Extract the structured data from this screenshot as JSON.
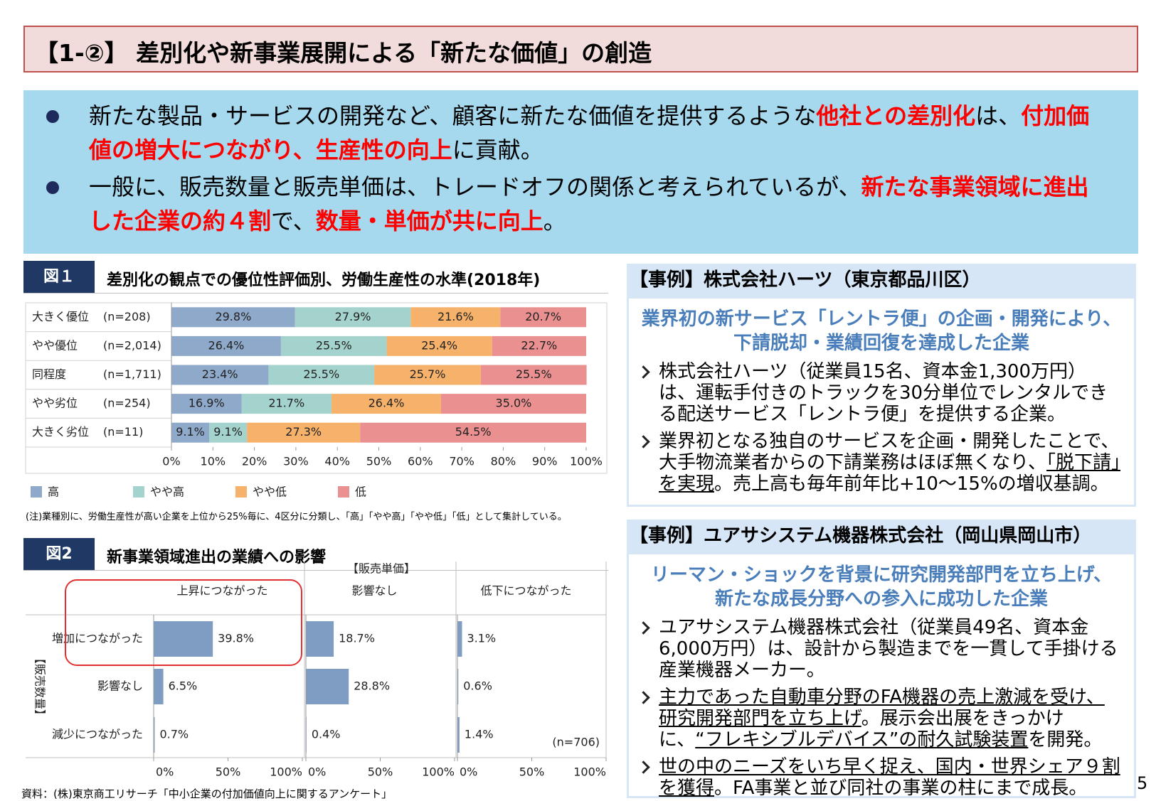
{
  "header": {
    "title": "【1-②】 差別化や新事業展開による「新たな価値」の創造"
  },
  "summary": {
    "bullets": [
      {
        "segments": [
          {
            "text": "新たな製品・サービスの開発など、顧客に新たな価値を提供するような",
            "emphasis": false
          },
          {
            "text": "他社との差別化",
            "emphasis": true
          },
          {
            "text": "は、",
            "emphasis": false
          },
          {
            "text": "付加価値の増大につながり、生産性の向上",
            "emphasis": true
          },
          {
            "text": "に貢献。",
            "emphasis": false
          }
        ]
      },
      {
        "segments": [
          {
            "text": "一般に、販売数量と販売単価は、トレードオフの関係と考えられているが、",
            "emphasis": false
          },
          {
            "text": "新たな事業領域に進出した企業の約４割",
            "emphasis": true
          },
          {
            "text": "で、",
            "emphasis": false
          },
          {
            "text": "数量・単価が共に向上",
            "emphasis": true
          },
          {
            "text": "。",
            "emphasis": false
          }
        ]
      }
    ]
  },
  "chart_data": [
    {
      "type": "stacked_bar",
      "label": "図１",
      "title": "差別化の観点での優位性評価別、労働生産性の水準(2018年)",
      "categories": [
        "大きく優位",
        "やや優位",
        "同程度",
        "やや劣位",
        "大きく劣位"
      ],
      "sample_sizes": [
        "(n=208)",
        "(n=2,014)",
        "(n=1,711)",
        "(n=254)",
        "(n=11)"
      ],
      "series": [
        {
          "name": "高",
          "color": "#8ea9c9",
          "values": [
            29.8,
            26.4,
            23.4,
            16.9,
            9.1
          ],
          "value_labels": [
            "29.8%",
            "26.4%",
            "23.4%",
            "16.9%",
            "9.1%"
          ]
        },
        {
          "name": "やや高",
          "color": "#a3d3cc",
          "values": [
            27.9,
            25.5,
            25.5,
            21.7,
            9.1
          ],
          "value_labels": [
            "27.9%",
            "25.5%",
            "25.5%",
            "21.7%",
            "9.1%"
          ]
        },
        {
          "name": "やや低",
          "color": "#f6b26b",
          "values": [
            21.6,
            25.4,
            25.7,
            26.4,
            27.3
          ],
          "value_labels": [
            "21.6%",
            "25.4%",
            "25.7%",
            "26.4%",
            "27.3%"
          ]
        },
        {
          "name": "低",
          "color": "#ea9090",
          "values": [
            20.7,
            22.7,
            25.5,
            35.0,
            54.5
          ],
          "value_labels": [
            "20.7%",
            "22.7%",
            "25.5%",
            "35.0%",
            "54.5%"
          ]
        }
      ],
      "xlim": [
        0,
        100
      ],
      "xticks": [
        {
          "value": 0,
          "label": "0%"
        },
        {
          "value": 10,
          "label": "10%"
        },
        {
          "value": 20,
          "label": "20%"
        },
        {
          "value": 30,
          "label": "30%"
        },
        {
          "value": 40,
          "label": "40%"
        },
        {
          "value": 50,
          "label": "50%"
        },
        {
          "value": 60,
          "label": "60%"
        },
        {
          "value": 70,
          "label": "70%"
        },
        {
          "value": 80,
          "label": "80%"
        },
        {
          "value": 90,
          "label": "90%"
        },
        {
          "value": 100,
          "label": "100%"
        }
      ],
      "legend": "bottom",
      "note": "(注)業種別に、労働生産性が高い企業を上位から25%毎に、4区分に分類し、「高」「やや高」「やや低」「低」として集計している。"
    },
    {
      "type": "bar_grid",
      "label": "図2",
      "title": "新事業領域進出の業績への影響",
      "column_title": "【販売単価】",
      "columns": [
        "上昇につながった",
        "影響なし",
        "低下につながった"
      ],
      "row_title": "【販売数量】",
      "rows": [
        "増加につながった",
        "影響なし",
        "減少につながった"
      ],
      "values": [
        [
          39.8,
          18.7,
          3.1
        ],
        [
          6.5,
          28.8,
          0.6
        ],
        [
          0.7,
          0.4,
          1.4
        ]
      ],
      "value_labels": [
        [
          "39.8%",
          "18.7%",
          "3.1%"
        ],
        [
          "6.5%",
          "28.8%",
          "0.6%"
        ],
        [
          "0.7%",
          "0.4%",
          "1.4%"
        ]
      ],
      "color": "#7f9cc2",
      "xlim": [
        0,
        100
      ],
      "xticks": [
        {
          "value": 0,
          "label": "0%"
        },
        {
          "value": 50,
          "label": "50%"
        },
        {
          "value": 100,
          "label": "100%"
        }
      ],
      "note": "(n=706)"
    }
  ],
  "cases": [
    {
      "title": "【事例】株式会社ハーツ（東京都品川区）",
      "headline": [
        "業界初の新サービス「レントラ便」の企画・開発により、",
        "下請脱却・業績回復を達成した企業"
      ],
      "items": [
        {
          "segments": [
            {
              "text": "株式会社ハーツ（従業員15名、資本金1,300万円）は、運転手付きのトラックを30分単位でレンタルできる配送サービス「レントラ便」を提供する企業。",
              "underline": false
            }
          ]
        },
        {
          "segments": [
            {
              "text": "業界初となる独自のサービスを企画・開発したことで、大手物流業者からの下請業務はほぼ無くなり、",
              "underline": false
            },
            {
              "text": "「脱下請」を実現",
              "underline": true
            },
            {
              "text": "。売上高も毎年前年比+10～15%の増収基調。",
              "underline": false
            }
          ]
        }
      ]
    },
    {
      "title": "【事例】ユアサシステム機器株式会社（岡山県岡山市）",
      "headline": [
        "リーマン・ショックを背景に研究開発部門を立ち上げ、",
        "新たな成長分野への参入に成功した企業"
      ],
      "items": [
        {
          "segments": [
            {
              "text": "ユアサシステム機器株式会社（従業員49名、資本金6,000万円）は、設計から製造までを一貫して手掛ける産業機器メーカー。",
              "underline": false
            }
          ]
        },
        {
          "segments": [
            {
              "text": "主力であった自動車分野のFA機器の売上激減を受け、研究開発部門を立ち上げ",
              "underline": true
            },
            {
              "text": "。展示会出展をきっかけに、",
              "underline": false
            },
            {
              "text": "“フレキシブルデバイス”の耐久試験装置",
              "underline": true
            },
            {
              "text": "を開発。",
              "underline": false
            }
          ]
        },
        {
          "segments": [
            {
              "text": "世の中のニーズをいち早く捉え、国内・世界シェア９割を獲得",
              "underline": true
            },
            {
              "text": "。FA事業と並び同社の事業の柱にまで成長。",
              "underline": false
            }
          ]
        }
      ]
    }
  ],
  "source": "資料：(株)東京商工リサーチ「中小企業の付加価値向上に関するアンケート」",
  "page_number": 5
}
